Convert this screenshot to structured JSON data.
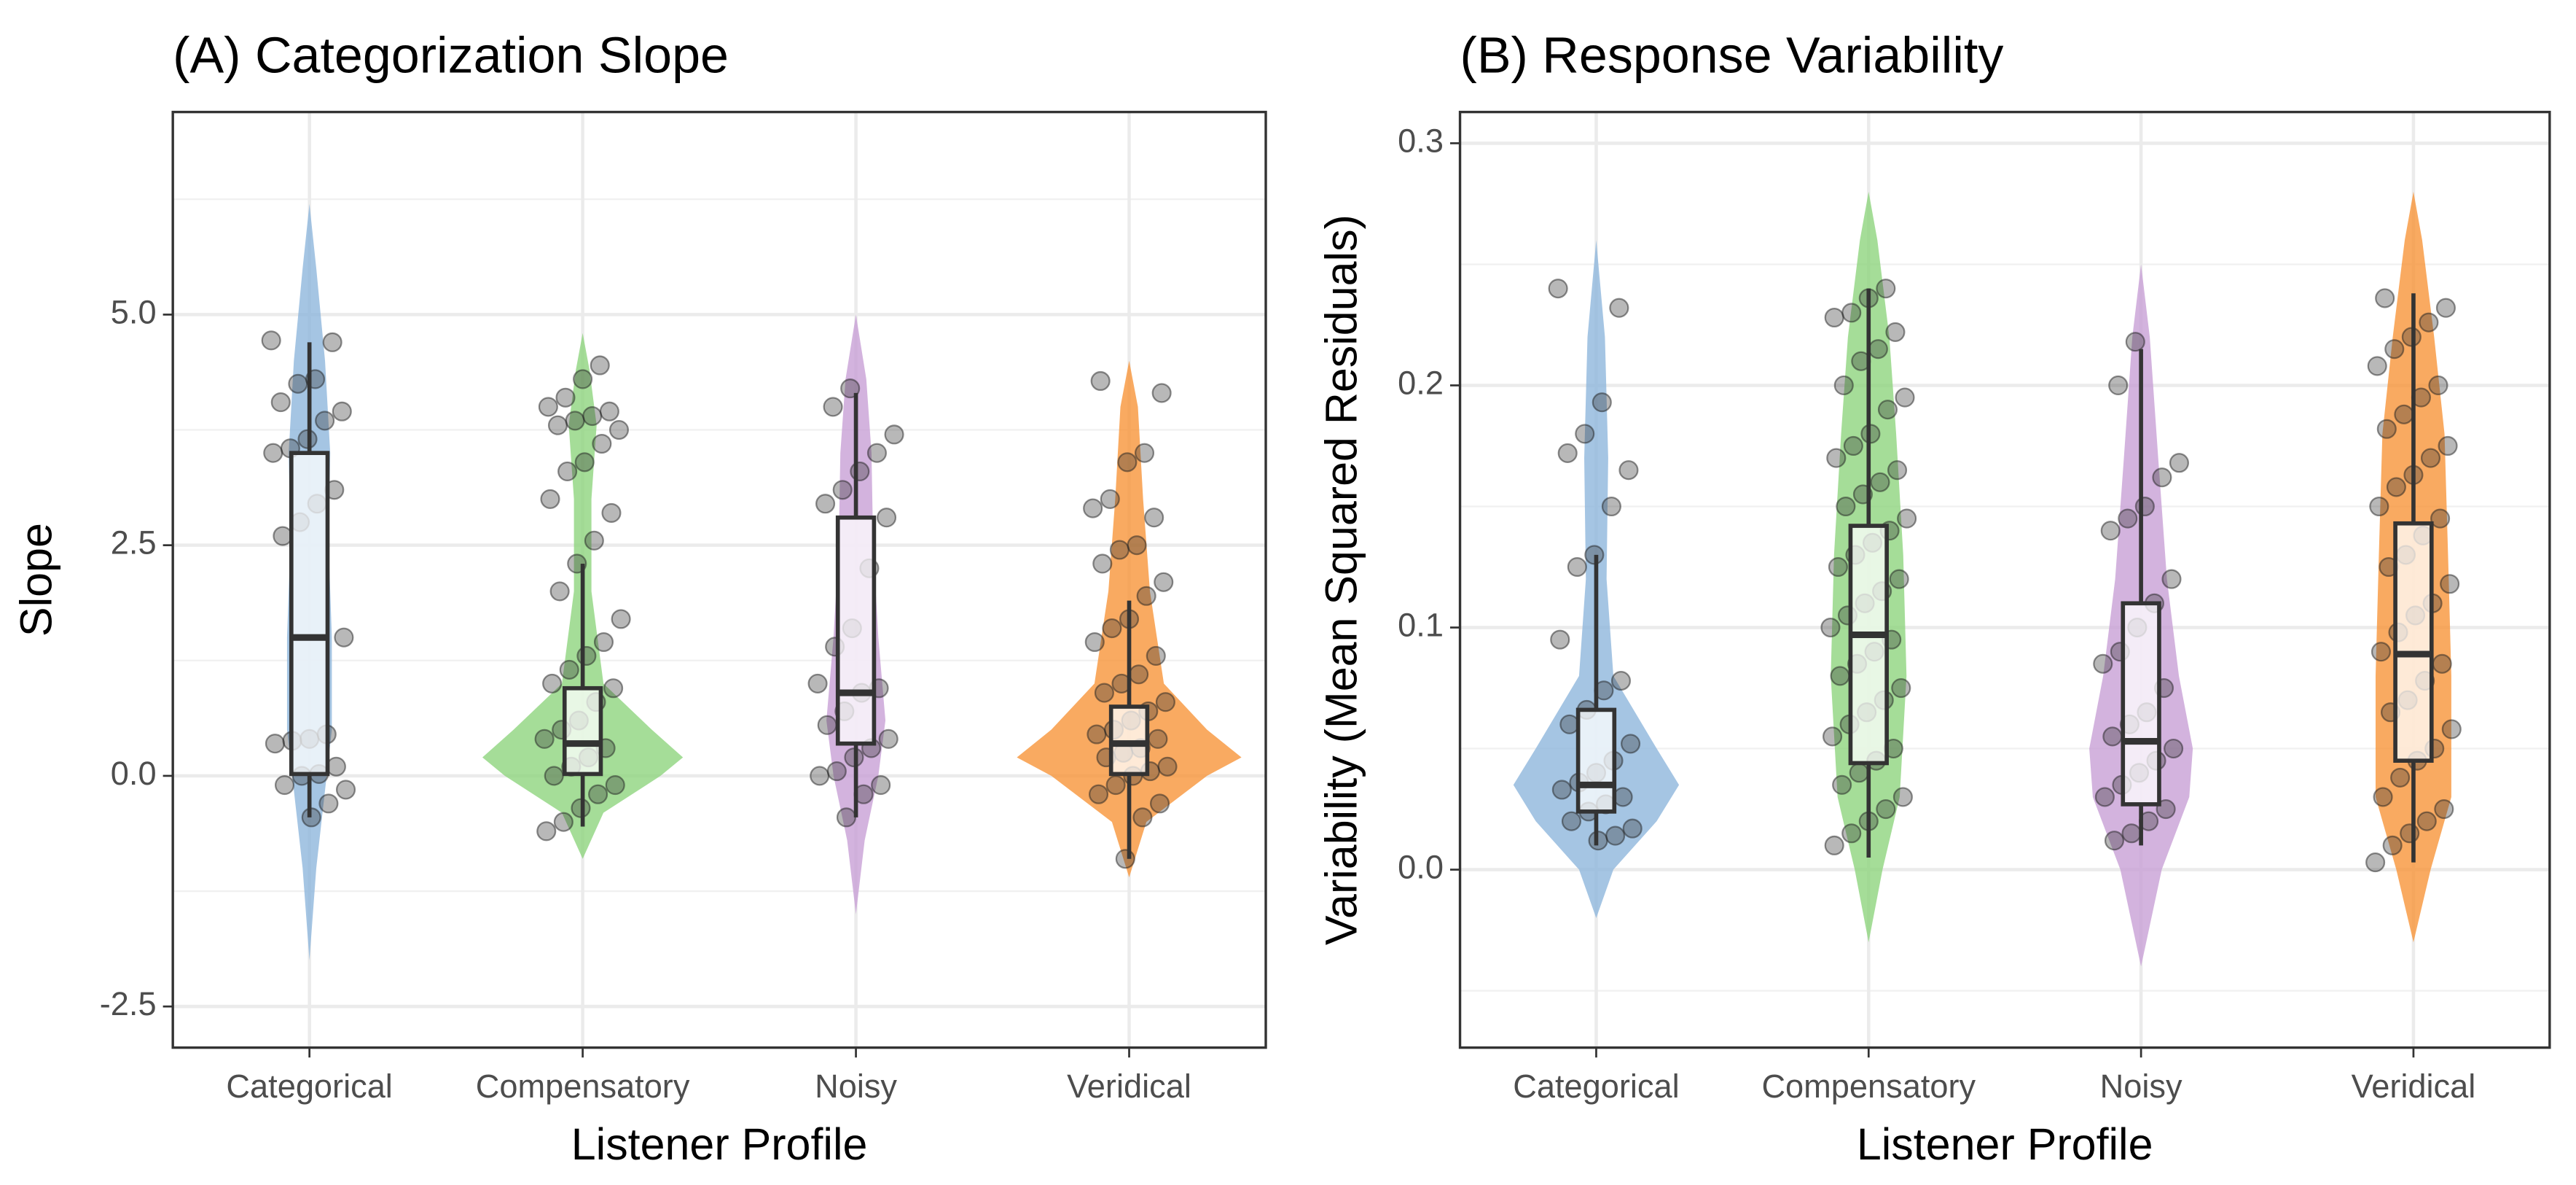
{
  "chart_data": [
    {
      "type": "violin",
      "title": "(A) Categorization Slope",
      "xlabel": "Listener Profile",
      "ylabel": "Slope",
      "categories": [
        "Categorical",
        "Compensatory",
        "Noisy",
        "Veridical"
      ],
      "colors": [
        "#8fb7dc",
        "#8ed47e",
        "#c8a0d6",
        "#f7953a"
      ],
      "ylim": [
        -2.946,
        7.196
      ],
      "yticks": [
        {
          "value": -2.5,
          "label": "-2.5"
        },
        {
          "value": 0,
          "label": "0.0"
        },
        2.5,
        {
          "value": 5,
          "label": "5.0"
        }
      ],
      "minor_yticks": [
        -1.25,
        1.25,
        3.75,
        6.25
      ],
      "grid": true,
      "groups": [
        {
          "whisker_low": -0.45,
          "q1": 0.02,
          "median": 1.5,
          "q3": 3.5,
          "whisker_high": 4.7,
          "violin_y": [
            -2.0,
            -1.0,
            0,
            0.5,
            1.5,
            2.5,
            3.5,
            4.5,
            5.5,
            6.2
          ],
          "violin_width": [
            0,
            0.025,
            0.063,
            0.082,
            0.082,
            0.07,
            0.076,
            0.057,
            0.025,
            0
          ],
          "points": [
            4.72,
            4.7,
            4.3,
            4.25,
            4.05,
            3.95,
            3.85,
            3.65,
            3.55,
            3.5,
            3.1,
            2.95,
            2.75,
            2.6,
            1.5,
            0.45,
            0.4,
            0.38,
            0.35,
            0.1,
            0.02,
            0.0,
            -0.1,
            -0.15,
            -0.3,
            -0.45
          ]
        },
        {
          "whisker_low": -0.55,
          "q1": 0.02,
          "median": 0.35,
          "q3": 0.95,
          "whisker_high": 2.3,
          "violin_y": [
            -0.9,
            -0.4,
            0,
            0.2,
            0.5,
            1.0,
            2.0,
            3.0,
            3.8,
            4.4,
            4.8
          ],
          "violin_width": [
            0,
            0.076,
            0.285,
            0.367,
            0.253,
            0.076,
            0.032,
            0.032,
            0.051,
            0.025,
            0
          ],
          "points": [
            4.45,
            4.3,
            4.1,
            4.0,
            3.95,
            3.9,
            3.85,
            3.8,
            3.75,
            3.6,
            3.4,
            3.3,
            3.0,
            2.85,
            2.55,
            2.3,
            2.0,
            1.7,
            1.45,
            1.3,
            1.15,
            1.0,
            0.95,
            0.8,
            0.6,
            0.5,
            0.4,
            0.3,
            0.2,
            0.1,
            0.0,
            -0.1,
            -0.2,
            -0.35,
            -0.5,
            -0.6
          ]
        },
        {
          "whisker_low": -0.45,
          "q1": 0.35,
          "median": 0.9,
          "q3": 2.8,
          "whisker_high": 4.15,
          "violin_y": [
            -1.5,
            -0.7,
            0,
            0.6,
            1.5,
            2.5,
            3.5,
            4.3,
            5.0
          ],
          "violin_width": [
            0,
            0.032,
            0.082,
            0.108,
            0.082,
            0.063,
            0.057,
            0.038,
            0
          ],
          "points": [
            4.2,
            4.0,
            3.7,
            3.5,
            3.3,
            3.1,
            2.95,
            2.8,
            2.25,
            1.6,
            1.4,
            1.0,
            0.95,
            0.9,
            0.7,
            0.55,
            0.4,
            0.3,
            0.2,
            0.05,
            0.0,
            -0.1,
            -0.2,
            -0.45
          ]
        },
        {
          "whisker_low": -0.9,
          "q1": 0.02,
          "median": 0.35,
          "q3": 0.75,
          "whisker_high": 1.9,
          "violin_y": [
            -1.1,
            -0.5,
            0,
            0.2,
            0.5,
            1.0,
            2.0,
            3.0,
            4.0,
            4.5
          ],
          "violin_width": [
            0,
            0.063,
            0.285,
            0.411,
            0.285,
            0.127,
            0.076,
            0.051,
            0.032,
            0
          ],
          "points": [
            4.28,
            4.15,
            3.5,
            3.4,
            3.0,
            2.9,
            2.8,
            2.5,
            2.45,
            2.3,
            2.1,
            1.95,
            1.7,
            1.6,
            1.45,
            1.3,
            1.1,
            1.0,
            0.9,
            0.8,
            0.7,
            0.6,
            0.5,
            0.45,
            0.4,
            0.3,
            0.25,
            0.2,
            0.1,
            0.05,
            0.0,
            -0.1,
            -0.2,
            -0.3,
            -0.45,
            -0.9
          ]
        }
      ]
    },
    {
      "type": "violin",
      "title": "(B) Response Variability",
      "xlabel": "Listener Profile",
      "ylabel": "Variability (Mean Squared Residuals)",
      "categories": [
        "Categorical",
        "Compensatory",
        "Noisy",
        "Veridical"
      ],
      "colors": [
        "#8fb7dc",
        "#8ed47e",
        "#c8a0d6",
        "#f7953a"
      ],
      "ylim": [
        -0.0735,
        0.3129
      ],
      "yticks": [
        {
          "value": 0,
          "label": "0.0"
        },
        0.1,
        0.2,
        0.3
      ],
      "minor_yticks": [
        -0.05,
        0.05,
        0.15,
        0.25
      ],
      "grid": true,
      "groups": [
        {
          "whisker_low": 0.01,
          "q1": 0.024,
          "median": 0.035,
          "q3": 0.066,
          "whisker_high": 0.13,
          "violin_y": [
            -0.02,
            0,
            0.02,
            0.035,
            0.05,
            0.08,
            0.12,
            0.17,
            0.22,
            0.26
          ],
          "violin_width": [
            0,
            0.063,
            0.222,
            0.304,
            0.222,
            0.063,
            0.038,
            0.044,
            0.032,
            0
          ],
          "points": [
            0.24,
            0.232,
            0.193,
            0.18,
            0.172,
            0.165,
            0.15,
            0.13,
            0.125,
            0.095,
            0.078,
            0.074,
            0.066,
            0.06,
            0.052,
            0.045,
            0.04,
            0.036,
            0.033,
            0.03,
            0.027,
            0.024,
            0.02,
            0.017,
            0.014,
            0.012
          ]
        },
        {
          "whisker_low": 0.005,
          "q1": 0.044,
          "median": 0.097,
          "q3": 0.142,
          "whisker_high": 0.24,
          "violin_y": [
            -0.03,
            0,
            0.03,
            0.08,
            0.13,
            0.18,
            0.22,
            0.26,
            0.28
          ],
          "violin_width": [
            0,
            0.051,
            0.114,
            0.139,
            0.127,
            0.101,
            0.076,
            0.032,
            0
          ],
          "points": [
            0.24,
            0.236,
            0.23,
            0.228,
            0.222,
            0.215,
            0.21,
            0.2,
            0.195,
            0.19,
            0.18,
            0.175,
            0.17,
            0.165,
            0.16,
            0.155,
            0.15,
            0.145,
            0.14,
            0.135,
            0.13,
            0.125,
            0.12,
            0.115,
            0.11,
            0.105,
            0.1,
            0.095,
            0.09,
            0.085,
            0.08,
            0.075,
            0.07,
            0.065,
            0.06,
            0.055,
            0.05,
            0.045,
            0.04,
            0.035,
            0.03,
            0.025,
            0.02,
            0.015,
            0.01
          ]
        },
        {
          "whisker_low": 0.01,
          "q1": 0.027,
          "median": 0.053,
          "q3": 0.11,
          "whisker_high": 0.215,
          "violin_y": [
            -0.04,
            0,
            0.03,
            0.05,
            0.08,
            0.12,
            0.17,
            0.22,
            0.25
          ],
          "violin_width": [
            0,
            0.076,
            0.177,
            0.19,
            0.139,
            0.095,
            0.063,
            0.032,
            0
          ],
          "points": [
            0.218,
            0.2,
            0.168,
            0.162,
            0.15,
            0.145,
            0.14,
            0.12,
            0.11,
            0.1,
            0.09,
            0.085,
            0.075,
            0.065,
            0.06,
            0.055,
            0.05,
            0.045,
            0.04,
            0.035,
            0.03,
            0.025,
            0.02,
            0.015,
            0.012
          ]
        },
        {
          "whisker_low": 0.003,
          "q1": 0.045,
          "median": 0.089,
          "q3": 0.143,
          "whisker_high": 0.238,
          "violin_y": [
            -0.03,
            0,
            0.03,
            0.08,
            0.13,
            0.18,
            0.22,
            0.26,
            0.28
          ],
          "violin_width": [
            0,
            0.063,
            0.139,
            0.139,
            0.127,
            0.114,
            0.076,
            0.032,
            0
          ],
          "points": [
            0.236,
            0.232,
            0.226,
            0.22,
            0.215,
            0.208,
            0.2,
            0.195,
            0.188,
            0.182,
            0.175,
            0.17,
            0.163,
            0.158,
            0.15,
            0.145,
            0.138,
            0.13,
            0.125,
            0.118,
            0.11,
            0.105,
            0.098,
            0.09,
            0.085,
            0.078,
            0.07,
            0.065,
            0.058,
            0.05,
            0.045,
            0.038,
            0.03,
            0.025,
            0.02,
            0.015,
            0.01,
            0.003
          ]
        }
      ]
    }
  ]
}
